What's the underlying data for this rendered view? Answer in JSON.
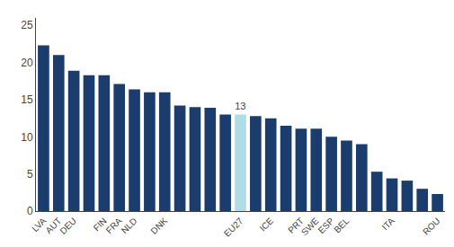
{
  "chart_data": {
    "type": "bar",
    "categories": [
      "LVA",
      "AUT",
      "DEU",
      null,
      "FIN",
      "FRA",
      "NLD",
      null,
      "DNK",
      null,
      null,
      null,
      null,
      "EU27",
      null,
      "ICE",
      null,
      "PRT",
      "SWE",
      "ESP",
      "BEL",
      null,
      null,
      "ITA",
      null,
      null,
      "ROU"
    ],
    "values": [
      22.3,
      21.0,
      18.9,
      18.3,
      18.3,
      17.1,
      16.4,
      16.0,
      16.0,
      14.2,
      14.0,
      13.9,
      13.0,
      13.0,
      12.8,
      12.5,
      11.5,
      11.1,
      11.1,
      10.0,
      9.5,
      9.0,
      5.3,
      4.4,
      4.1,
      3.0,
      2.3
    ],
    "value_labels": [
      null,
      null,
      null,
      null,
      null,
      null,
      null,
      null,
      null,
      null,
      null,
      null,
      null,
      "13",
      null,
      null,
      null,
      null,
      null,
      null,
      null,
      null,
      null,
      null,
      null,
      null,
      null
    ],
    "colors": [
      "#1b3d6e",
      "#1b3d6e",
      "#1b3d6e",
      "#1b3d6e",
      "#1b3d6e",
      "#1b3d6e",
      "#1b3d6e",
      "#1b3d6e",
      "#1b3d6e",
      "#1b3d6e",
      "#1b3d6e",
      "#1b3d6e",
      "#1b3d6e",
      "#b0dce8",
      "#1b3d6e",
      "#1b3d6e",
      "#1b3d6e",
      "#1b3d6e",
      "#1b3d6e",
      "#1b3d6e",
      "#1b3d6e",
      "#1b3d6e",
      "#1b3d6e",
      "#1b3d6e",
      "#1b3d6e",
      "#1b3d6e",
      "#1b3d6e"
    ],
    "ylim": [
      0,
      26
    ],
    "yticks": [
      0,
      5,
      10,
      15,
      20,
      25
    ],
    "grid": false
  }
}
